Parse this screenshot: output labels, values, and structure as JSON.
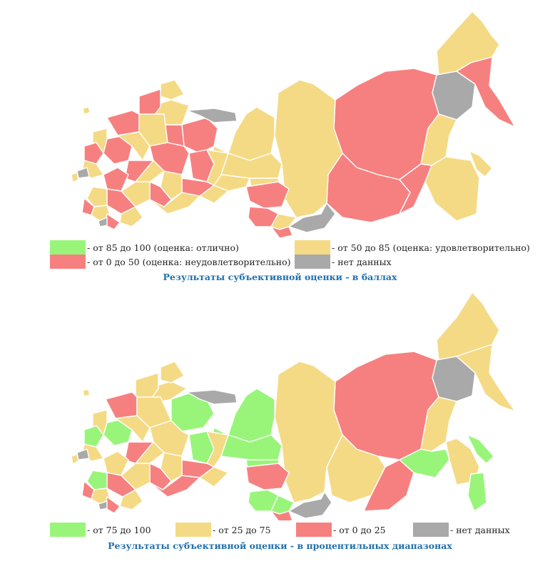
{
  "colors": {
    "green": "#98f57a",
    "yellow": "#f5da85",
    "red": "#f68080",
    "gray": "#a9a9a9"
  },
  "map_scores": {
    "caption": "Результаты субъективной оценки - в баллах",
    "legend": [
      {
        "label": "- от 85 до 100 (оценка: отлично)",
        "color": "#98f57a"
      },
      {
        "label": "- от 50 до 85 (оценка: удовлетворительно)",
        "color": "#f5da85"
      },
      {
        "label": "- от 0 до 50 (оценка: неудовлетворительно)",
        "color": "#f68080"
      },
      {
        "label": "- нет данных",
        "color": "#a9a9a9"
      }
    ]
  },
  "map_percentiles": {
    "caption": "Результаты субъективной оценки - в процентильных диапазонах",
    "legend": [
      {
        "label": "- от 75 до 100",
        "color": "#98f57a"
      },
      {
        "label": "- от 25 до 75",
        "color": "#f5da85"
      },
      {
        "label": "- от 0 до 25",
        "color": "#f68080"
      },
      {
        "label": "- нет данных",
        "color": "#a9a9a9"
      }
    ]
  }
}
